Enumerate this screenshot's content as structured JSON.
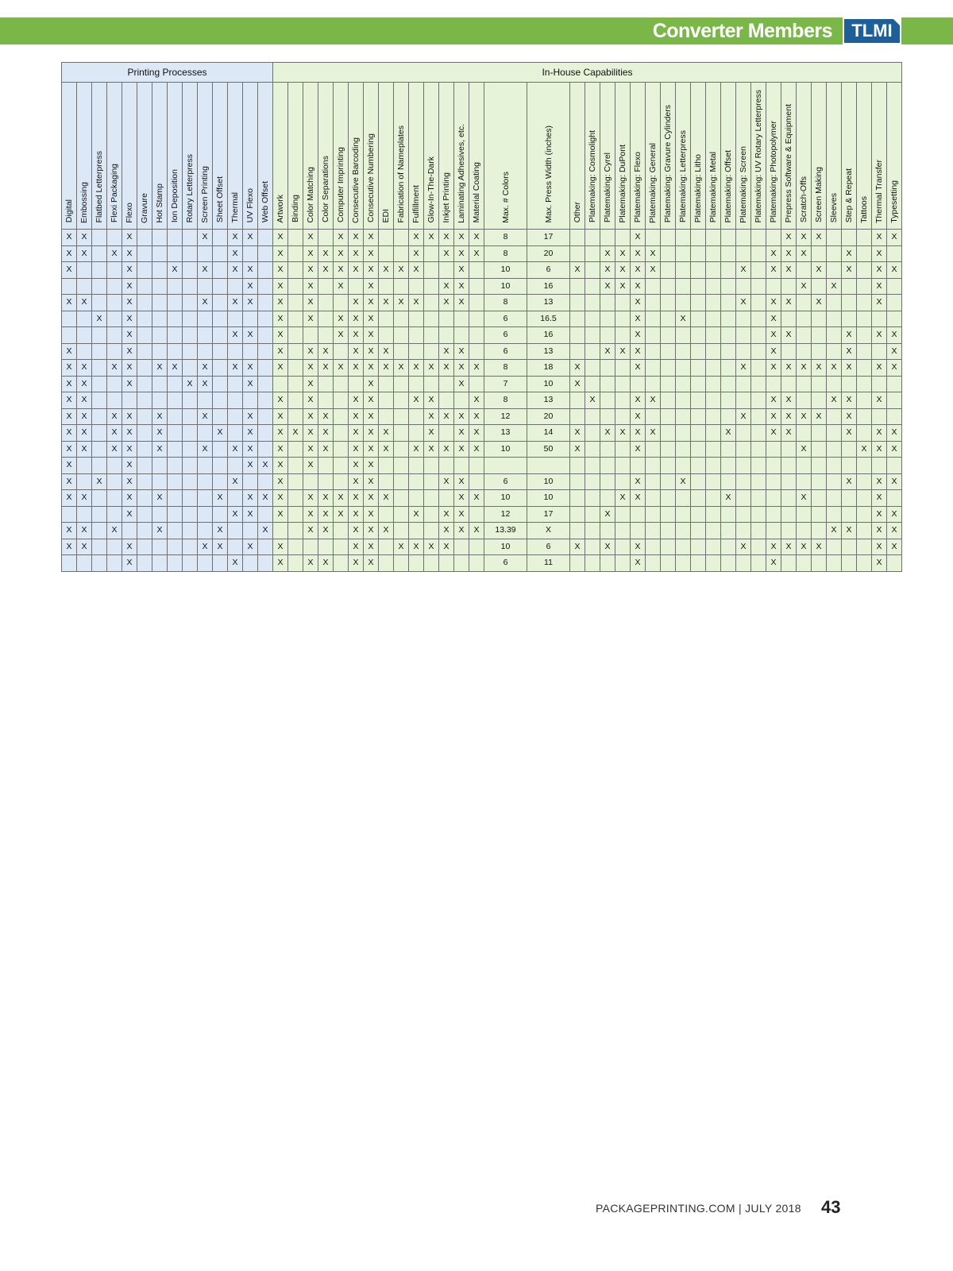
{
  "header": {
    "title": "Converter Members",
    "logo": "TLMI"
  },
  "groups": {
    "printing": "Printing Processes",
    "inhouse": "In-House Capabilities"
  },
  "columns": [
    "Digital",
    "Embossing",
    "Flatbed Letterpress",
    "Flexi Packaging",
    "Flexo",
    "Gravure",
    "Hot Stamp",
    "Ion Deposition",
    "Rotary Letterpress",
    "Screen Printing",
    "Sheet Offset",
    "Thermal",
    "UV Flexo",
    "Web Offset",
    "Artwork",
    "Binding",
    "Color Matching",
    "Color Separations",
    "Computer Imprinting",
    "Consecutive Barcoding",
    "Consecutive Numbering",
    "EDI",
    "Fabrication of Nameplates",
    "Fulfillment",
    "Glow-In-The-Dark",
    "Inkjet Printing",
    "Laminating Adhesives, etc.",
    "Material Coating",
    "Max. # Colors",
    "Max. Press Width (inches)",
    "Other",
    "Platemaking: Cosmolight",
    "Platemaking: Cyrel",
    "Platemaking: DuPont",
    "Platemaking: Flexo",
    "Platemaking: General",
    "Platemaking: Gravure Cylinders",
    "Platemaking: Letterpress",
    "Platemaking: Litho",
    "Platemaking: Metal",
    "Platemaking: Offset",
    "Platemaking: Screen",
    "Platemaking: UV Rotary Letterpress",
    "Platemaking: Photopolymer",
    "Prepress Software & Equipment",
    "Scratch-Offs",
    "Screen Making",
    "Sleeves",
    "Step & Repeat",
    "Tattoos",
    "Thermal Transfer",
    "Typesetting"
  ],
  "rows": [
    [
      "X X . . X . . . . X . X X . | X . X . X X X . . X X X X X | 8 | 17 | . . . . X . . . . . . . . . X X X . . . X X"
    ],
    [
      "X X . X X . . . . . . X . . | X . X X X X X . . X . X X X | 8 | 20 | . . X X X X . . . . . . . X X X . . X . X ."
    ],
    [
      "X . . . X . . X . X . X X . | X . X X X X X X X X . . X . | 10 | 6 | X . X X X X . . . . . X . X X . X . X . X X"
    ],
    [
      ". . . . X . . . . . . . X . | X . X . X . X . . . . X X . | 10 | 16 | . . X X X . . . . . . . . . . X . X . . X ."
    ],
    [
      "X X . . X . . . . X . X X . | X . X . . X X X X X . X X . | 8 | 13 | . . . . X . . . . . . X . X X . X . . . X ."
    ],
    [
      ". . X . X . . . . . . . . . | X . X . X X X . . . . . . . | 6 | 16.5 | . . . . X . . X . . . . . X . . . . . . . ."
    ],
    [
      ". . . . X . . . . . . X X . | X . . . X X X . . . . . . . | 6 | 16 | . . . . X . . . . . . . . X X . . . X . X X"
    ],
    [
      "X . . . X . . . . . . . . . | X . X X . X X X . . . X X . | 6 | 13 | . . X X X . . . . . . . . X . . . . X . . X"
    ],
    [
      "X X . X X . X X . X . X X . | X . X X X X X X X X X X X X | 8 | 18 | X . . . X . . . . . . X . X X X X X X . X X"
    ],
    [
      "X X . . X . . . X X . . X . | . . X . . . X . . . . . X . | 7 | 10 | X . . . . . . . . . . . . . . . . . . . . ."
    ],
    [
      "X X . . . . . . . . . . . . | X . X . . X X . . X X . . X | 8 | 13 | . X . . X X . . . . . . . X X . . X X . X ."
    ],
    [
      "X X . X X . X . . X . . X . | X . X X . X X . . . X X X X | 12 | 20 | . . . . X . . . . . . X . X X X X . X . . ."
    ],
    [
      "X X . X X . X . . . X . X . | X X X X . X X X . . X . X X | 13 | 14 | X . X X X X . . . . X . . X X . . . X . X X"
    ],
    [
      "X X . X X . X . . X . X X . | X . X X . X X X . X X X X X | 10 | 50 | X . . . X . . . . . . . . . . X . . . X X X"
    ],
    [
      "X . . . X . . . . . . . X X | X . X . . X X . . . . . . . | . | . | . . . . . . . . . . . . . . . . . . . . . ."
    ],
    [
      "X . X . X . . . . . . X . . | X . . . . X X . . . . X X . | 6 | 10 | . . . . X . . X . . . . . . . . . . X . X X"
    ],
    [
      "X X . . X . X . . . X . X X | X . X X X X X X . . . . X X | 10 | 10 | . . . X X . . . . . X . . . . X . . . . X ."
    ],
    [
      ". . . . X . . . . . . X X . | X . X X X X X . . X . X X . | 12 | 17 | . . X . . . . . . . . . . . . . . . . . X X"
    ],
    [
      "X X . X . . X . . . X . . X | . . X X . X X X . . . X X X | 13.39 | X | . . . . . . . . . . . . . . . . . X X . X X"
    ],
    [
      "X X . . X . . . . X X . X . | X . . . . X X . X X X X . . | 10 | 6 | X . X . X . . . . . . X . X X X X . . . X X"
    ],
    [
      ". . . . X . . . . . . X . . | X . X X . X X . . . . . . . | 6 | 11 | . . . . X . . . . . . . . X . . . . . . X ."
    ]
  ],
  "footer": {
    "site": "PACKAGEPRINTING.COM | JULY 2018",
    "page": "43"
  }
}
